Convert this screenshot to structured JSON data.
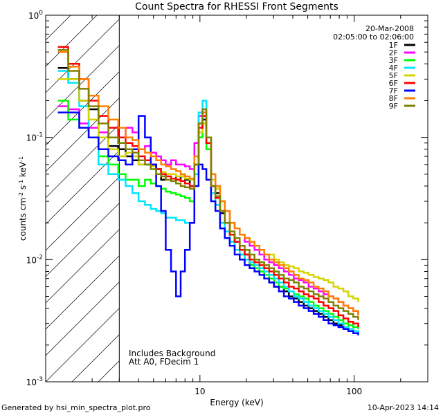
{
  "chart_data": {
    "type": "line",
    "title": "Count Spectra for RHESSI Front Segments",
    "xlabel": "Energy (keV)",
    "ylabel": "counts cm-2 s-1 keV-1",
    "xscale": "log",
    "yscale": "log",
    "xlim": [
      1.0,
      300
    ],
    "ylim": [
      0.001,
      1.0
    ],
    "x_ticks": [
      {
        "value": 10,
        "label": "10"
      },
      {
        "value": 100,
        "label": "100"
      }
    ],
    "y_ticks": [
      {
        "value": 1,
        "label": "10",
        "exp": "0"
      },
      {
        "value": 0.1,
        "label": "10",
        "exp": "-1"
      },
      {
        "value": 0.01,
        "label": "10",
        "exp": "-2"
      },
      {
        "value": 0.001,
        "label": "10",
        "exp": "-3"
      }
    ],
    "date_label": "20-Mar-2008",
    "time_range_label": "02:05:00 to 02:06:00",
    "annotations": [
      "Includes Background",
      "Att A0, FDecim 1"
    ],
    "hatched_region_keV": [
      1.0,
      3.0
    ],
    "series": [
      {
        "name": "1F",
        "color": "#000000",
        "values": [
          0.37,
          0.3,
          0.2,
          0.17,
          0.1,
          0.085,
          0.08,
          0.07,
          0.065,
          0.06,
          0.06,
          0.06,
          0.055,
          0.045,
          0.05,
          0.05,
          0.045,
          0.048,
          0.045,
          0.04,
          0.06,
          0.12,
          0.14,
          0.09,
          0.04,
          0.035,
          0.024,
          0.02,
          0.016,
          0.014,
          0.012,
          0.011,
          0.009,
          0.0085,
          0.008,
          0.007,
          0.0065,
          0.006,
          0.006,
          0.0055,
          0.005,
          0.0048,
          0.0045,
          0.0042,
          0.004,
          0.0038,
          0.0036,
          0.0034,
          0.0032,
          0.003,
          0.0029,
          0.0028,
          0.0027,
          0.0026,
          0.0025
        ]
      },
      {
        "name": "2F",
        "color": "#ff00ff",
        "values": [
          0.18,
          0.17,
          0.13,
          0.12,
          0.11,
          0.1,
          0.1,
          0.12,
          0.11,
          0.08,
          0.085,
          0.075,
          0.07,
          0.065,
          0.06,
          0.065,
          0.06,
          0.06,
          0.058,
          0.055,
          0.09,
          0.15,
          0.16,
          0.1,
          0.05,
          0.04,
          0.03,
          0.025,
          0.02,
          0.018,
          0.016,
          0.014,
          0.013,
          0.012,
          0.011,
          0.01,
          0.0095,
          0.009,
          0.0085,
          0.008,
          0.0075,
          0.007,
          0.0068,
          0.0065,
          0.006,
          0.0058,
          0.0055,
          0.0052,
          0.005,
          0.0048,
          0.0045,
          0.0042,
          0.004,
          0.0038,
          0.0035
        ]
      },
      {
        "name": "3F",
        "color": "#00ff00",
        "values": [
          0.2,
          0.14,
          0.12,
          0.1,
          0.07,
          0.06,
          0.05,
          0.045,
          0.045,
          0.04,
          0.045,
          0.042,
          0.04,
          0.038,
          0.036,
          0.035,
          0.034,
          0.033,
          0.032,
          0.03,
          0.05,
          0.1,
          0.13,
          0.08,
          0.035,
          0.028,
          0.02,
          0.017,
          0.014,
          0.012,
          0.011,
          0.01,
          0.009,
          0.0085,
          0.008,
          0.0075,
          0.007,
          0.0065,
          0.006,
          0.0058,
          0.0055,
          0.0052,
          0.005,
          0.0048,
          0.0045,
          0.0042,
          0.004,
          0.0038,
          0.0036,
          0.0034,
          0.0032,
          0.003,
          0.0029,
          0.0028,
          0.0027
        ]
      },
      {
        "name": "4F",
        "color": "#00e5ff",
        "values": [
          0.35,
          0.28,
          0.18,
          0.1,
          0.06,
          0.05,
          0.045,
          0.04,
          0.035,
          0.03,
          0.028,
          0.026,
          0.025,
          0.024,
          0.022,
          0.022,
          0.021,
          0.021,
          0.02,
          0.02,
          0.05,
          0.16,
          0.2,
          0.1,
          0.035,
          0.028,
          0.02,
          0.017,
          0.014,
          0.012,
          0.011,
          0.01,
          0.0095,
          0.009,
          0.0085,
          0.008,
          0.0075,
          0.007,
          0.0065,
          0.006,
          0.0055,
          0.005,
          0.0048,
          0.0045,
          0.0042,
          0.004,
          0.0038,
          0.0036,
          0.0034,
          0.0032,
          0.003,
          0.0028,
          0.0027,
          0.0026,
          0.0025
        ]
      },
      {
        "name": "5F",
        "color": "#d4d400",
        "values": [
          0.3,
          0.3,
          0.2,
          0.14,
          0.1,
          0.08,
          0.07,
          0.075,
          0.07,
          0.06,
          0.06,
          0.058,
          0.055,
          0.052,
          0.05,
          0.05,
          0.048,
          0.048,
          0.046,
          0.045,
          0.06,
          0.11,
          0.13,
          0.09,
          0.045,
          0.038,
          0.03,
          0.025,
          0.02,
          0.018,
          0.016,
          0.015,
          0.014,
          0.013,
          0.012,
          0.011,
          0.011,
          0.01,
          0.0095,
          0.009,
          0.0088,
          0.0085,
          0.008,
          0.0078,
          0.0075,
          0.0072,
          0.007,
          0.0068,
          0.0065,
          0.006,
          0.0058,
          0.0055,
          0.005,
          0.0048,
          0.0045
        ]
      },
      {
        "name": "6F",
        "color": "#ff0000",
        "values": [
          0.55,
          0.4,
          0.3,
          0.2,
          0.15,
          0.12,
          0.1,
          0.09,
          0.085,
          0.07,
          0.065,
          0.06,
          0.055,
          0.05,
          0.048,
          0.046,
          0.045,
          0.044,
          0.042,
          0.04,
          0.06,
          0.12,
          0.15,
          0.09,
          0.04,
          0.032,
          0.025,
          0.02,
          0.016,
          0.014,
          0.012,
          0.011,
          0.01,
          0.0095,
          0.009,
          0.0085,
          0.008,
          0.0075,
          0.007,
          0.0065,
          0.006,
          0.0058,
          0.0055,
          0.0052,
          0.005,
          0.0048,
          0.0045,
          0.0042,
          0.004,
          0.0038,
          0.0035,
          0.0033,
          0.0031,
          0.003,
          0.0028
        ]
      },
      {
        "name": "7F",
        "color": "#0000ff",
        "values": [
          0.16,
          0.16,
          0.12,
          0.1,
          0.08,
          0.07,
          0.065,
          0.06,
          0.08,
          0.15,
          0.1,
          0.06,
          0.04,
          0.025,
          0.012,
          0.008,
          0.005,
          0.008,
          0.012,
          0.02,
          0.04,
          0.06,
          0.055,
          0.045,
          0.03,
          0.025,
          0.018,
          0.015,
          0.013,
          0.011,
          0.01,
          0.009,
          0.0085,
          0.008,
          0.0075,
          0.007,
          0.0065,
          0.006,
          0.0055,
          0.005,
          0.0048,
          0.0045,
          0.0042,
          0.004,
          0.0038,
          0.0036,
          0.0034,
          0.0032,
          0.003,
          0.0029,
          0.0028,
          0.0027,
          0.0026,
          0.0025,
          0.0024
        ]
      },
      {
        "name": "8F",
        "color": "#ff8000",
        "values": [
          0.5,
          0.38,
          0.3,
          0.22,
          0.18,
          0.14,
          0.12,
          0.1,
          0.095,
          0.08,
          0.075,
          0.07,
          0.065,
          0.06,
          0.058,
          0.055,
          0.053,
          0.05,
          0.048,
          0.046,
          0.07,
          0.13,
          0.16,
          0.1,
          0.05,
          0.04,
          0.03,
          0.025,
          0.02,
          0.018,
          0.016,
          0.015,
          0.014,
          0.013,
          0.012,
          0.011,
          0.01,
          0.0095,
          0.009,
          0.0085,
          0.008,
          0.0075,
          0.007,
          0.0068,
          0.0065,
          0.006,
          0.0058,
          0.0055,
          0.005,
          0.0048,
          0.0045,
          0.0042,
          0.004,
          0.0038,
          0.0035
        ]
      },
      {
        "name": "9F",
        "color": "#808000",
        "values": [
          0.52,
          0.35,
          0.25,
          0.18,
          0.13,
          0.1,
          0.09,
          0.08,
          0.075,
          0.065,
          0.06,
          0.055,
          0.05,
          0.048,
          0.045,
          0.044,
          0.042,
          0.04,
          0.039,
          0.038,
          0.06,
          0.13,
          0.17,
          0.1,
          0.04,
          0.033,
          0.025,
          0.02,
          0.017,
          0.015,
          0.013,
          0.012,
          0.011,
          0.01,
          0.0095,
          0.009,
          0.0085,
          0.008,
          0.0075,
          0.007,
          0.0068,
          0.0065,
          0.006,
          0.0058,
          0.0055,
          0.0052,
          0.005,
          0.0048,
          0.0045,
          0.0042,
          0.004,
          0.0038,
          0.0036,
          0.0034,
          0.0032
        ]
      }
    ],
    "energy_bins_keV": [
      1.2,
      1.4,
      1.65,
      1.9,
      2.2,
      2.55,
      2.95,
      3.3,
      3.65,
      4.0,
      4.4,
      4.8,
      5.2,
      5.6,
      6.0,
      6.5,
      7.0,
      7.5,
      8.0,
      8.6,
      9.2,
      9.8,
      10.4,
      11.0,
      11.8,
      12.6,
      13.5,
      14.5,
      15.6,
      16.8,
      18.1,
      19.5,
      21.0,
      22.6,
      24.3,
      26.1,
      28.1,
      30.2,
      32.5,
      35.0,
      37.7,
      40.6,
      43.7,
      47.1,
      50.7,
      54.6,
      58.8,
      63.3,
      68.2,
      73.4,
      79.0,
      85.1,
      91.6,
      98.6,
      106.2
    ]
  },
  "footer": {
    "left": "Generated by hsi_min_spectra_plot.pro",
    "right": "10-Apr-2023 14:14"
  }
}
